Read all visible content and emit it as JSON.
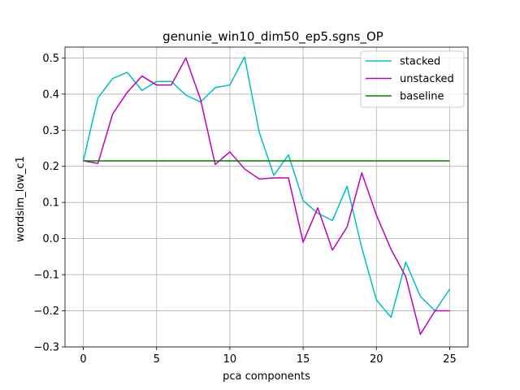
{
  "chart_data": {
    "type": "line",
    "title": "genunie_win10_dim50_ep5.sgns_OP",
    "xlabel": "pca components",
    "ylabel": "wordsim_low_c1",
    "xlim": [
      -1.25,
      26.25
    ],
    "ylim": [
      -0.3,
      0.53
    ],
    "xticks": [
      0,
      5,
      10,
      15,
      20,
      25
    ],
    "yticks": [
      -0.3,
      -0.2,
      -0.1,
      0.0,
      0.1,
      0.2,
      0.3,
      0.4,
      0.5
    ],
    "ytick_labels": [
      "−0.3",
      "−0.2",
      "−0.1",
      "0.0",
      "0.1",
      "0.2",
      "0.3",
      "0.4",
      "0.5"
    ],
    "grid": true,
    "legend_position": "top-right",
    "x": [
      0,
      1,
      2,
      3,
      4,
      5,
      6,
      7,
      8,
      9,
      10,
      11,
      12,
      13,
      14,
      15,
      16,
      17,
      18,
      19,
      20,
      21,
      22,
      23,
      24,
      25
    ],
    "series": [
      {
        "name": "stacked",
        "color": "#00bfbf",
        "values": [
          0.215,
          0.39,
          0.443,
          0.46,
          0.41,
          0.435,
          0.435,
          0.397,
          0.378,
          0.418,
          0.425,
          0.503,
          0.295,
          0.175,
          0.232,
          0.105,
          0.07,
          0.05,
          0.145,
          -0.025,
          -0.17,
          -0.218,
          -0.065,
          -0.16,
          -0.2,
          -0.14
        ]
      },
      {
        "name": "unstacked",
        "color": "#bf00bf",
        "values": [
          0.215,
          0.208,
          0.345,
          0.405,
          0.45,
          0.425,
          0.425,
          0.5,
          0.385,
          0.205,
          0.24,
          0.193,
          0.165,
          0.168,
          0.168,
          -0.01,
          0.085,
          -0.032,
          0.032,
          0.182,
          0.065,
          -0.03,
          -0.105,
          -0.265,
          -0.2,
          -0.2
        ]
      },
      {
        "name": "baseline",
        "color": "#008000",
        "values": [
          0.215,
          0.215,
          0.215,
          0.215,
          0.215,
          0.215,
          0.215,
          0.215,
          0.215,
          0.215,
          0.215,
          0.215,
          0.215,
          0.215,
          0.215,
          0.215,
          0.215,
          0.215,
          0.215,
          0.215,
          0.215,
          0.215,
          0.215,
          0.215,
          0.215,
          0.215
        ]
      }
    ]
  }
}
